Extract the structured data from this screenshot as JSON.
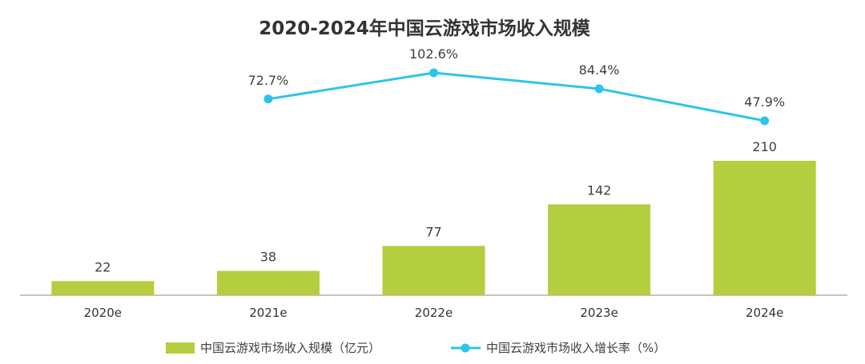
{
  "chart_data": {
    "type": "bar",
    "title": "2020-2024年中国云游戏市场收入规模",
    "categories": [
      "2020e",
      "2021e",
      "2022e",
      "2023e",
      "2024e"
    ],
    "series": [
      {
        "name": "中国云游戏市场收入规模（亿元）",
        "kind": "bar",
        "values": [
          22,
          38,
          77,
          142,
          210
        ],
        "labels": [
          "22",
          "38",
          "77",
          "142",
          "210"
        ],
        "color": "#b3cf3f"
      },
      {
        "name": "中国云游戏市场收入增长率（%）",
        "kind": "line",
        "values": [
          null,
          72.7,
          102.6,
          84.4,
          47.9
        ],
        "labels": [
          "",
          "72.7%",
          "102.6%",
          "84.4%",
          "47.9%"
        ],
        "color": "#2ec4ea"
      }
    ],
    "xlabel": "",
    "ylabel": "",
    "ylim": [
      0,
      210
    ],
    "ylim_growth": [
      47.9,
      102.6
    ],
    "grid": false,
    "legend": "bottom-center"
  }
}
